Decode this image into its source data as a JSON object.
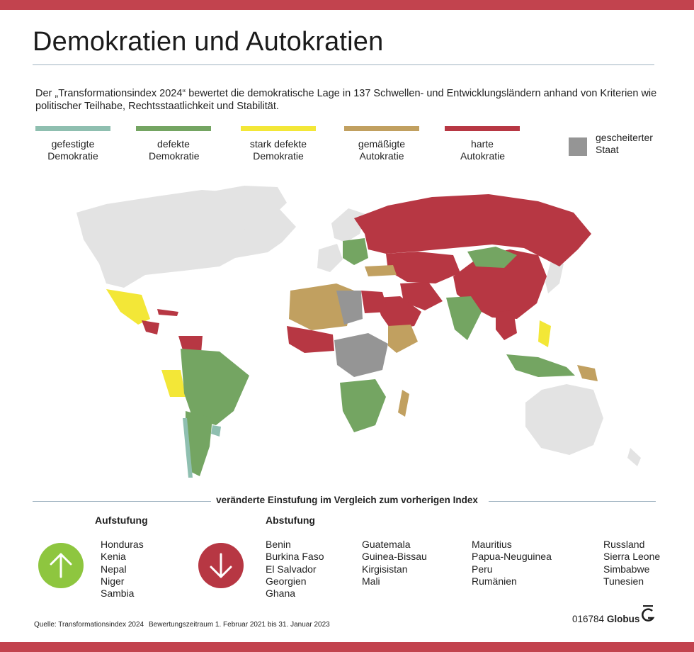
{
  "title": "Demokratien und Autokratien",
  "intro": "Der „Transformationsindex 2024“ bewertet die demokratische Lage in 137 Schwellen- und Entwicklungsländern anhand von Kriterien wie politischer Teilhabe, Rechtsstaatlichkeit und Stabilität.",
  "legend": [
    {
      "label": "gefestigte Demokratie",
      "color": "#8fbfb0"
    },
    {
      "label": "defekte Demokratie",
      "color": "#74a562"
    },
    {
      "label": "stark defekte Demokratie",
      "color": "#f3e737"
    },
    {
      "label": "gemäßigte Autokratie",
      "color": "#c1a060"
    },
    {
      "label": "harte Autokratie",
      "color": "#b73743"
    },
    {
      "label": "gescheiterter Staat",
      "color": "#959595"
    }
  ],
  "colors": {
    "accent_bar": "#c2434e",
    "land_unrated": "#e3e3e3",
    "upgrade_circle": "#8ec63f",
    "downgrade_circle": "#b73743",
    "rule": "#9fb3c0"
  },
  "changes": {
    "heading": "veränderte Einstufung im Vergleich zum vorherigen Index",
    "upgrade_title": "Aufstufung",
    "downgrade_title": "Abstufung",
    "upgrade_icon": "arrow-up-icon",
    "downgrade_icon": "arrow-down-icon",
    "upgrades": [
      "Honduras",
      "Kenia",
      "Nepal",
      "Niger",
      "Sambia"
    ],
    "downgrade_columns": [
      [
        "Benin",
        "Burkina Faso",
        "El Salvador",
        "Georgien",
        "Ghana"
      ],
      [
        "Guatemala",
        "Guinea-Bissau",
        "Kirgisistan",
        "Mali"
      ],
      [
        "Mauritius",
        "Papua-Neuguinea",
        "Peru",
        "Rumänien"
      ],
      [
        "Russland",
        "Sierra Leone",
        "Simbabwe",
        "Tunesien"
      ]
    ]
  },
  "footer": {
    "source": "Quelle: Transformationsindex 2024",
    "period": "Bewertungszeitraum 1. Februar 2021 bis 31. Januar 2023",
    "code": "016784",
    "brand": "Globus"
  }
}
